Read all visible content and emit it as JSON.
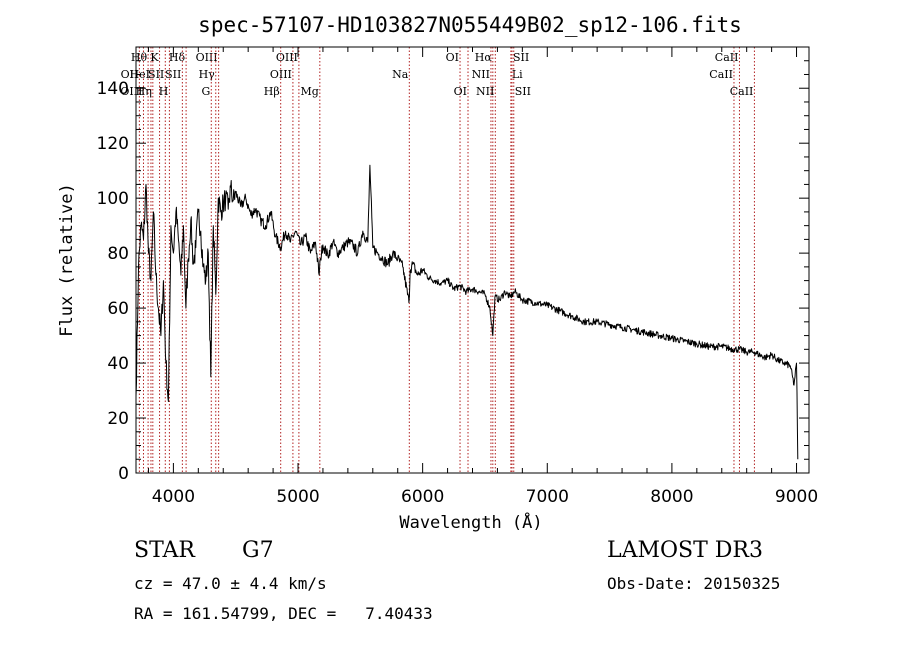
{
  "chart_data": {
    "type": "line",
    "title": "spec-57107-HD103827N055449B02_sp12-106.fits",
    "xlabel": "Wavelength (Å)",
    "ylabel": "Flux (relative)",
    "xlim": [
      3700,
      9100
    ],
    "ylim": [
      0,
      155
    ],
    "xticks": [
      4000,
      5000,
      6000,
      7000,
      8000,
      9000
    ],
    "yticks": [
      0,
      20,
      40,
      60,
      80,
      100,
      120,
      140
    ],
    "grid": false,
    "series": [
      {
        "name": "Flux",
        "x": [
          3700,
          3720,
          3740,
          3760,
          3780,
          3800,
          3820,
          3840,
          3860,
          3880,
          3900,
          3920,
          3940,
          3960,
          3970,
          3980,
          4000,
          4020,
          4040,
          4060,
          4080,
          4100,
          4120,
          4140,
          4160,
          4180,
          4200,
          4220,
          4240,
          4260,
          4280,
          4300,
          4320,
          4340,
          4360,
          4380,
          4400,
          4420,
          4440,
          4460,
          4480,
          4500,
          4540,
          4580,
          4620,
          4660,
          4700,
          4740,
          4780,
          4820,
          4860,
          4900,
          4940,
          4980,
          5020,
          5060,
          5100,
          5140,
          5170,
          5180,
          5200,
          5240,
          5280,
          5320,
          5360,
          5400,
          5440,
          5480,
          5520,
          5560,
          5577,
          5600,
          5640,
          5680,
          5720,
          5760,
          5800,
          5840,
          5890,
          5900,
          5920,
          5960,
          6000,
          6050,
          6100,
          6150,
          6200,
          6250,
          6300,
          6350,
          6400,
          6450,
          6500,
          6540,
          6563,
          6580,
          6620,
          6660,
          6700,
          6740,
          6800,
          6900,
          7000,
          7100,
          7200,
          7300,
          7400,
          7500,
          7600,
          7700,
          7800,
          7900,
          8000,
          8100,
          8200,
          8300,
          8400,
          8498,
          8542,
          8600,
          8662,
          8700,
          8750,
          8800,
          8850,
          8900,
          8950,
          8980,
          9000,
          9010
        ],
        "values": [
          28,
          75,
          90,
          85,
          105,
          80,
          70,
          95,
          72,
          60,
          50,
          70,
          40,
          26,
          55,
          90,
          80,
          95,
          85,
          72,
          90,
          60,
          78,
          92,
          76,
          82,
          95,
          88,
          75,
          70,
          80,
          35,
          90,
          65,
          100,
          95,
          98,
          100,
          96,
          104,
          99,
          102,
          97,
          100,
          94,
          96,
          92,
          90,
          95,
          86,
          82,
          88,
          84,
          88,
          83,
          86,
          80,
          84,
          72,
          78,
          83,
          79,
          84,
          80,
          82,
          84,
          83,
          80,
          88,
          84,
          112,
          82,
          80,
          78,
          76,
          80,
          78,
          75,
          62,
          74,
          76,
          72,
          74,
          71,
          70,
          69,
          70,
          67,
          68,
          66,
          67,
          66,
          65,
          60,
          50,
          64,
          63,
          66,
          64,
          66,
          63,
          62,
          61,
          59,
          57,
          55,
          55,
          54,
          53,
          52,
          51,
          50,
          49,
          48,
          47,
          46,
          46,
          45,
          45,
          44,
          44,
          43,
          42,
          43,
          41,
          40,
          39,
          32,
          40,
          5
        ],
        "color": "#000000"
      }
    ],
    "line_markers": [
      {
        "label": "OII",
        "x": 3727,
        "row": 2,
        "side": "left"
      },
      {
        "label": "OIII",
        "x": 3760,
        "row": 3,
        "side": "left"
      },
      {
        "label": "Hθ",
        "x": 3797,
        "row": 1,
        "side": "left"
      },
      {
        "label": "HeI",
        "x": 3820,
        "row": 2,
        "side": "left"
      },
      {
        "label": "Hη",
        "x": 3835,
        "row": 3,
        "side": "left"
      },
      {
        "label": "K",
        "x": 3889,
        "row": 1,
        "side": "left"
      },
      {
        "label": "SII",
        "x": 3935,
        "row": 2,
        "side": "left"
      },
      {
        "label": "H",
        "x": 3968,
        "row": 3,
        "side": "left"
      },
      {
        "label": "Hδ",
        "x": 4102,
        "row": 1,
        "side": "left"
      },
      {
        "label": "SII",
        "x": 4072,
        "row": 2,
        "side": "left"
      },
      {
        "label": "OIII",
        "x": 4363,
        "row": 1,
        "side": "left"
      },
      {
        "label": "Hγ",
        "x": 4340,
        "row": 2,
        "side": "left"
      },
      {
        "label": "G",
        "x": 4304,
        "row": 3,
        "side": "left"
      },
      {
        "label": "Hβ",
        "x": 4861,
        "row": 3,
        "side": "left"
      },
      {
        "label": "OIII",
        "x": 5007,
        "row": 1,
        "side": "left"
      },
      {
        "label": "OIII",
        "x": 4959,
        "row": 2,
        "side": "left"
      },
      {
        "label": "Mg",
        "x": 5175,
        "row": 3,
        "side": "left"
      },
      {
        "label": "Na",
        "x": 5893,
        "row": 2,
        "side": "left"
      },
      {
        "label": "OI",
        "x": 6300,
        "row": 1,
        "side": "left"
      },
      {
        "label": "OI",
        "x": 6364,
        "row": 3,
        "side": "left"
      },
      {
        "label": "Hα",
        "x": 6563,
        "row": 1,
        "side": "left"
      },
      {
        "label": "NII",
        "x": 6548,
        "row": 2,
        "side": "left"
      },
      {
        "label": "NII",
        "x": 6583,
        "row": 3,
        "side": "left"
      },
      {
        "label": "SII",
        "x": 6717,
        "row": 1,
        "side": "right"
      },
      {
        "label": "Li",
        "x": 6708,
        "row": 2,
        "side": "right"
      },
      {
        "label": "SII",
        "x": 6731,
        "row": 3,
        "side": "right"
      },
      {
        "label": "CaII",
        "x": 8542,
        "row": 1,
        "side": "left"
      },
      {
        "label": "CaII",
        "x": 8498,
        "row": 2,
        "side": "left"
      },
      {
        "label": "CaII",
        "x": 8662,
        "row": 3,
        "side": "left"
      }
    ]
  },
  "info": {
    "object_class": "STAR",
    "subclass": "G7",
    "survey": "LAMOST DR3",
    "cz": "cz = 47.0 ± 4.4 km/s",
    "obs_date": "Obs-Date: 20150325",
    "coords": "RA = 161.54799, DEC =   7.40433"
  }
}
